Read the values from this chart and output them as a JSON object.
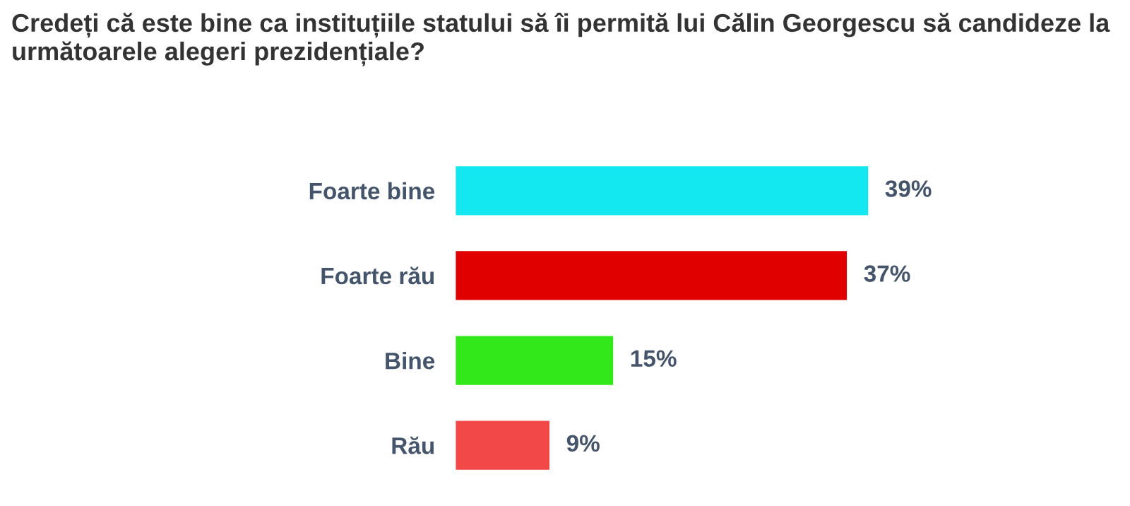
{
  "chart_data": {
    "type": "bar",
    "orientation": "horizontal",
    "title": "Credeți că este bine ca instituțiile statului să îi permită lui Călin Georgescu să candideze la următoarele alegeri prezidențiale?",
    "categories": [
      "Foarte bine",
      "Foarte rău",
      "Bine",
      "Rău"
    ],
    "values": [
      39,
      37,
      15,
      9
    ],
    "colors": [
      "#13e8f0",
      "#e00000",
      "#33e81a",
      "#f24848"
    ],
    "value_labels": [
      "39%",
      "37%",
      "15%",
      "9%"
    ],
    "grid": false,
    "legend": false
  }
}
